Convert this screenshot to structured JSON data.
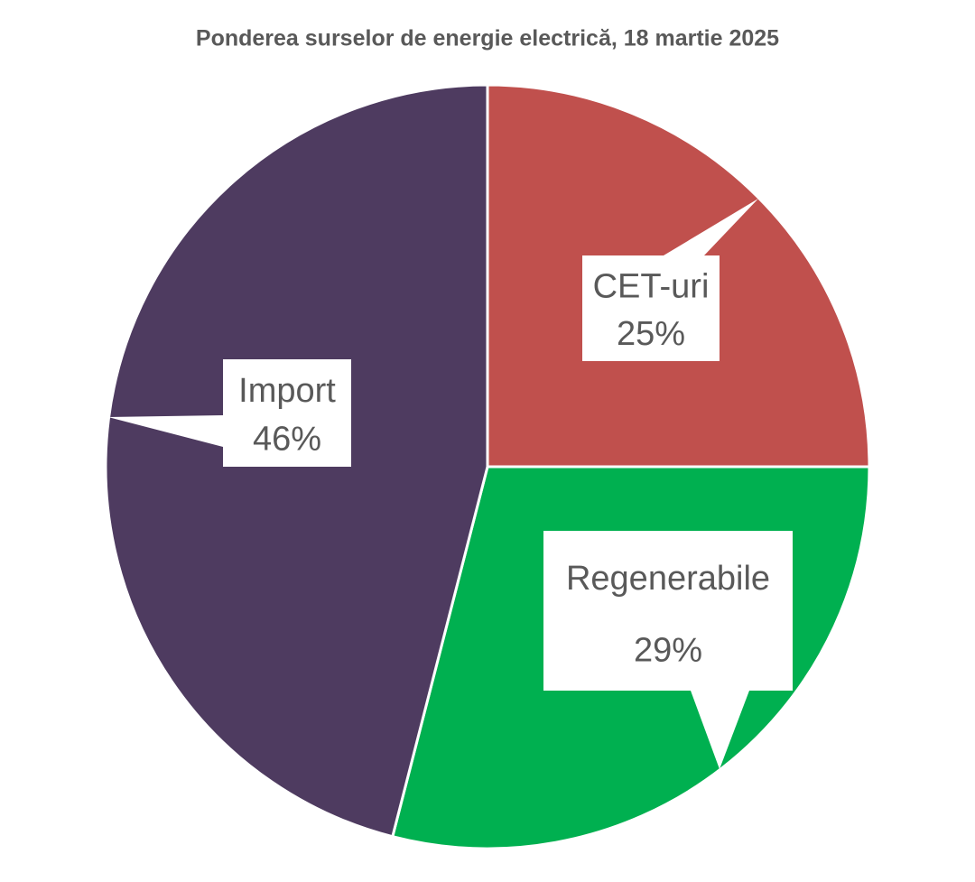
{
  "chart_data": {
    "type": "pie",
    "title": "Ponderea surselor de energie electrică, 18 martie 2025",
    "categories": [
      "CET-uri",
      "Regenerabile",
      "Import"
    ],
    "values": [
      25,
      29,
      46
    ],
    "value_labels": [
      "25%",
      "29%",
      "46%"
    ],
    "colors": [
      "#C0504D",
      "#00B050",
      "#4E3B60"
    ]
  }
}
